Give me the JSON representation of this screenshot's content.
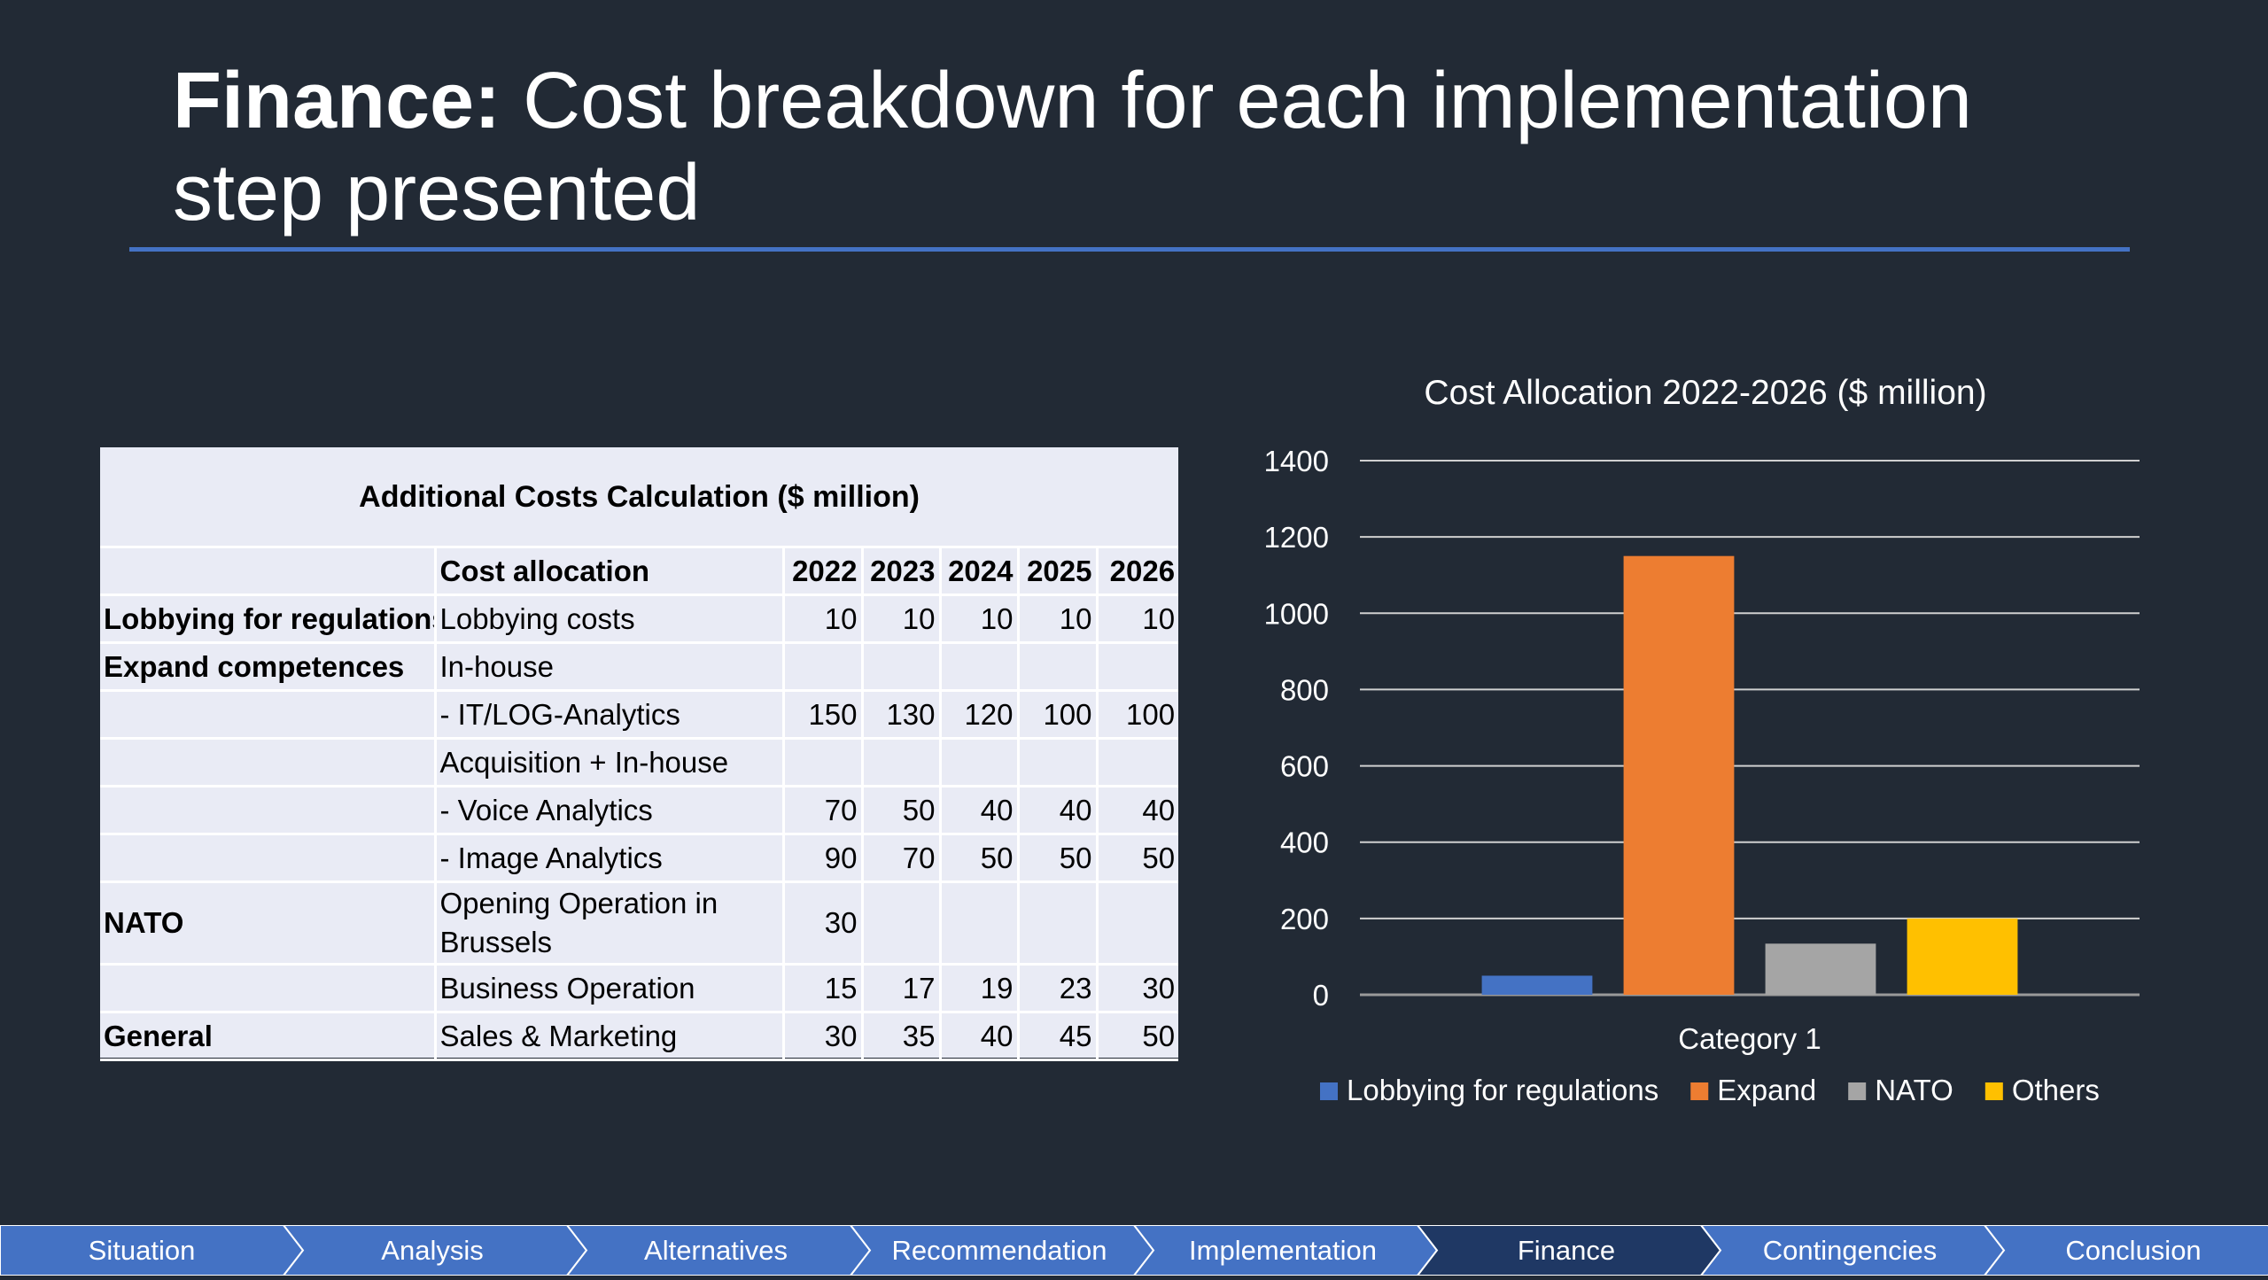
{
  "slide": {
    "title_bold": "Finance:",
    "title_rest": " Cost breakdown for each implementation step presented"
  },
  "table": {
    "caption": "Additional Costs Calculation ($ million)",
    "header": {
      "group": "",
      "allocation": "Cost allocation",
      "years": [
        "2022",
        "2023",
        "2024",
        "2025",
        "2026"
      ]
    },
    "rows": [
      {
        "group": "Lobbying for regulations",
        "item": "Lobbying costs",
        "values": [
          "10",
          "10",
          "10",
          "10",
          "10"
        ]
      },
      {
        "group": "Expand competences",
        "item": "In-house",
        "values": [
          "",
          "",
          "",
          "",
          ""
        ]
      },
      {
        "group": "",
        "item": "- IT/LOG-Analytics",
        "values": [
          "150",
          "130",
          "120",
          "100",
          "100"
        ]
      },
      {
        "group": "",
        "item": "Acquisition + In-house",
        "values": [
          "",
          "",
          "",
          "",
          ""
        ]
      },
      {
        "group": "",
        "item": "- Voice Analytics",
        "values": [
          "70",
          "50",
          "40",
          "40",
          "40"
        ]
      },
      {
        "group": "",
        "item": "- Image Analytics",
        "values": [
          "90",
          "70",
          "50",
          "50",
          "50"
        ]
      },
      {
        "group": "NATO",
        "item": "Opening Operation in Brussels",
        "values": [
          "30",
          "",
          "",
          "",
          ""
        ]
      },
      {
        "group": "",
        "item": "Business Operation",
        "values": [
          "15",
          "17",
          "19",
          "23",
          "30"
        ]
      },
      {
        "group": "General",
        "item": "Sales & Marketing",
        "values": [
          "30",
          "35",
          "40",
          "45",
          "50"
        ]
      }
    ]
  },
  "chart_data": {
    "type": "bar",
    "title": "Cost Allocation 2022-2026 ($ million)",
    "categories": [
      "Category 1"
    ],
    "ylim": [
      0,
      1400
    ],
    "yticks": [
      "0",
      "200",
      "400",
      "600",
      "800",
      "1000",
      "1200",
      "1400"
    ],
    "grid": true,
    "legend_position": "bottom",
    "series": [
      {
        "name": "Lobbying for regulations",
        "values": [
          50
        ],
        "color": "#4472c4"
      },
      {
        "name": "Expand",
        "values": [
          1150
        ],
        "color": "#ed7d31"
      },
      {
        "name": "NATO",
        "values": [
          134
        ],
        "color": "#a5a5a5"
      },
      {
        "name": "Others",
        "values": [
          200
        ],
        "color": "#ffc000"
      }
    ]
  },
  "nav": {
    "items": [
      "Situation",
      "Analysis",
      "Alternatives",
      "Recommendation",
      "Implementation",
      "Finance",
      "Contingencies",
      "Conclusion"
    ],
    "active": "Finance",
    "colors": {
      "base": "#4472c4",
      "active": "#1f3864"
    }
  }
}
